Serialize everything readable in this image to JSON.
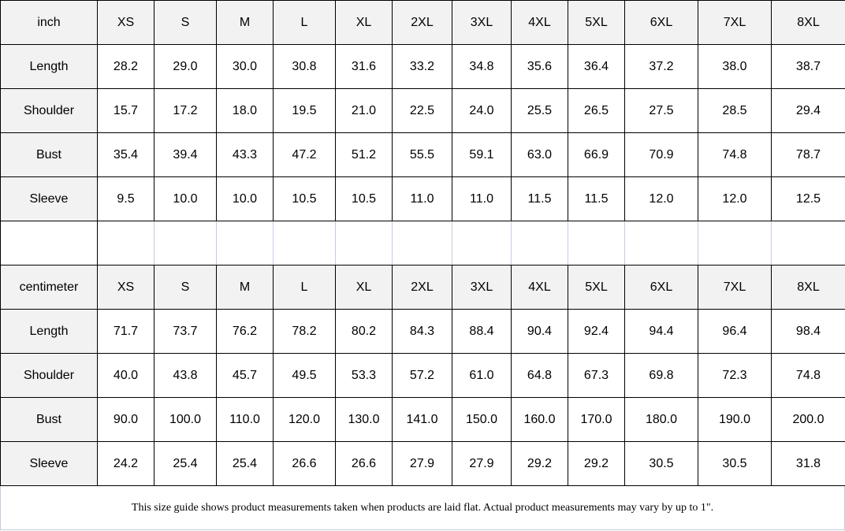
{
  "sizes": [
    "XS",
    "S",
    "M",
    "L",
    "XL",
    "2XL",
    "3XL",
    "4XL",
    "5XL",
    "6XL",
    "7XL",
    "8XL"
  ],
  "tables": [
    {
      "unit": "inch",
      "rows": [
        {
          "label": "Length",
          "values": [
            "28.2",
            "29.0",
            "30.0",
            "30.8",
            "31.6",
            "33.2",
            "34.8",
            "35.6",
            "36.4",
            "37.2",
            "38.0",
            "38.7"
          ]
        },
        {
          "label": "Shoulder",
          "values": [
            "15.7",
            "17.2",
            "18.0",
            "19.5",
            "21.0",
            "22.5",
            "24.0",
            "25.5",
            "26.5",
            "27.5",
            "28.5",
            "29.4"
          ]
        },
        {
          "label": "Bust",
          "values": [
            "35.4",
            "39.4",
            "43.3",
            "47.2",
            "51.2",
            "55.5",
            "59.1",
            "63.0",
            "66.9",
            "70.9",
            "74.8",
            "78.7"
          ]
        },
        {
          "label": "Sleeve",
          "values": [
            "9.5",
            "10.0",
            "10.0",
            "10.5",
            "10.5",
            "11.0",
            "11.0",
            "11.5",
            "11.5",
            "12.0",
            "12.0",
            "12.5"
          ]
        }
      ]
    },
    {
      "unit": "centimeter",
      "rows": [
        {
          "label": "Length",
          "values": [
            "71.7",
            "73.7",
            "76.2",
            "78.2",
            "80.2",
            "84.3",
            "88.4",
            "90.4",
            "92.4",
            "94.4",
            "96.4",
            "98.4"
          ]
        },
        {
          "label": "Shoulder",
          "values": [
            "40.0",
            "43.8",
            "45.7",
            "49.5",
            "53.3",
            "57.2",
            "61.0",
            "64.8",
            "67.3",
            "69.8",
            "72.3",
            "74.8"
          ]
        },
        {
          "label": "Bust",
          "values": [
            "90.0",
            "100.0",
            "110.0",
            "120.0",
            "130.0",
            "141.0",
            "150.0",
            "160.0",
            "170.0",
            "180.0",
            "190.0",
            "200.0"
          ]
        },
        {
          "label": "Sleeve",
          "values": [
            "24.2",
            "25.4",
            "25.4",
            "26.6",
            "26.6",
            "27.9",
            "27.9",
            "29.2",
            "29.2",
            "30.5",
            "30.5",
            "31.8"
          ]
        }
      ]
    }
  ],
  "footer_note": "This size guide shows product measurements taken when products are laid flat. Actual product measurements may vary by up to 1\"."
}
